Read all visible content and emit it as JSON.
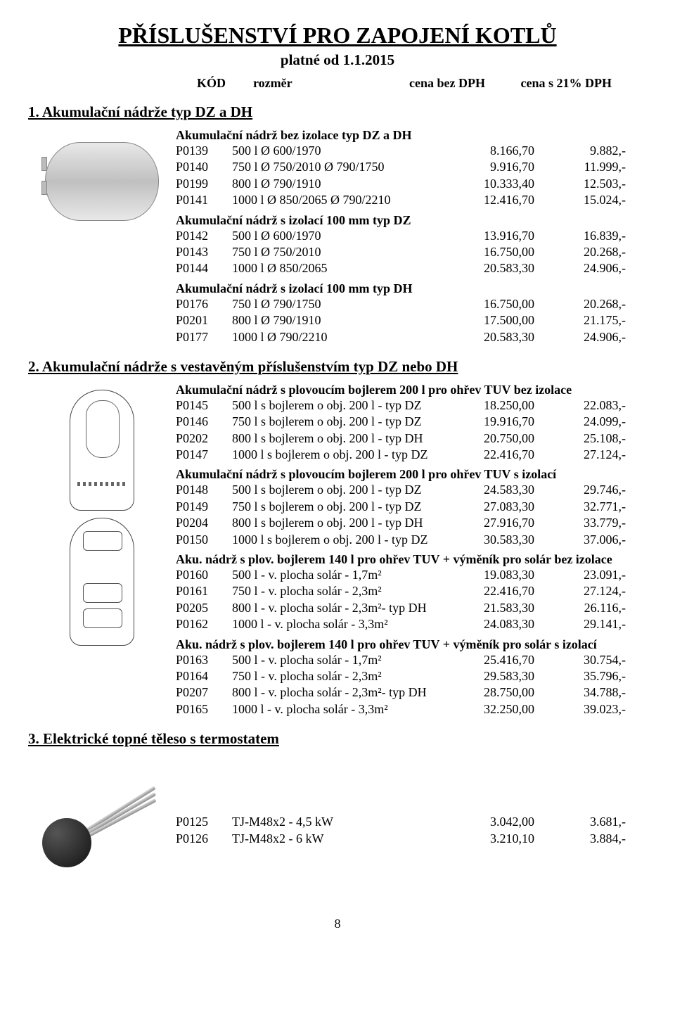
{
  "title": "PŘÍSLUŠENSTVÍ PRO ZAPOJENÍ KOTLŮ",
  "subtitle": "platné od 1.1.2015",
  "columns": {
    "c1": "KÓD",
    "c2": "rozměr",
    "c3": "cena bez DPH",
    "c4": "cena s 21% DPH"
  },
  "section1": {
    "title": "1. Akumulační nádrže typ DZ a DH",
    "groups": [
      {
        "title": "Akumulační nádrž bez izolace typ DZ a DH",
        "rows": [
          {
            "code": "P0139",
            "desc": "500 l   Ø 600/1970",
            "p1": "8.166,70",
            "p2": "9.882,-"
          },
          {
            "code": "P0140",
            "desc": "750 l   Ø 750/2010 Ø 790/1750",
            "p1": "9.916,70",
            "p2": "11.999,-"
          },
          {
            "code": "P0199",
            "desc": "800 l   Ø 790/1910",
            "p1": "10.333,40",
            "p2": "12.503,-"
          },
          {
            "code": "P0141",
            "desc": "1000 l Ø 850/2065 Ø 790/2210",
            "p1": "12.416,70",
            "p2": "15.024,-"
          }
        ]
      },
      {
        "title": "Akumulační nádrž s izolací 100 mm typ DZ",
        "rows": [
          {
            "code": "P0142",
            "desc": "500 l   Ø 600/1970",
            "p1": "13.916,70",
            "p2": "16.839,-"
          },
          {
            "code": "P0143",
            "desc": "750 l   Ø 750/2010",
            "p1": "16.750,00",
            "p2": "20.268,-"
          },
          {
            "code": "P0144",
            "desc": "1000 l Ø 850/2065",
            "p1": "20.583,30",
            "p2": "24.906,-"
          }
        ]
      },
      {
        "title": "Akumulační nádrž s izolací 100 mm  typ DH",
        "rows": [
          {
            "code": "P0176",
            "desc": "750 l   Ø 790/1750",
            "p1": "16.750,00",
            "p2": "20.268,-"
          },
          {
            "code": "P0201",
            "desc": "800 l   Ø 790/1910",
            "p1": "17.500,00",
            "p2": "21.175,-"
          },
          {
            "code": "P0177",
            "desc": "1000 l Ø 790/2210",
            "p1": "20.583,30",
            "p2": "24.906,-"
          }
        ]
      }
    ]
  },
  "section2": {
    "title": "2. Akumulační nádrže s vestavěným příslušenstvím typ DZ nebo DH",
    "groups": [
      {
        "title": "Akumulační nádrž s plovoucím bojlerem 200 l pro ohřev TUV bez izolace",
        "rows": [
          {
            "code": "P0145",
            "desc": "500 l s bojlerem o obj. 200 l - typ DZ",
            "p1": "18.250,00",
            "p2": "22.083,-"
          },
          {
            "code": "P0146",
            "desc": "750 l s bojlerem o obj. 200 l - typ DZ",
            "p1": "19.916,70",
            "p2": "24.099,-"
          },
          {
            "code": "P0202",
            "desc": "800 l s bojlerem o obj. 200 l - typ DH",
            "p1": "20.750,00",
            "p2": "25.108,-"
          },
          {
            "code": "P0147",
            "desc": "1000 l s bojlerem o obj. 200 l - typ DZ",
            "p1": "22.416,70",
            "p2": "27.124,-"
          }
        ]
      },
      {
        "title": "Akumulační nádrž s plovoucím bojlerem 200 l pro ohřev TUV s izolací",
        "rows": [
          {
            "code": "P0148",
            "desc": "500 l s bojlerem o obj. 200 l - typ DZ",
            "p1": "24.583,30",
            "p2": "29.746,-"
          },
          {
            "code": "P0149",
            "desc": "750 l s bojlerem o obj. 200 l - typ DZ",
            "p1": "27.083,30",
            "p2": "32.771,-"
          },
          {
            "code": "P0204",
            "desc": "800 l s bojlerem o obj. 200 l - typ DH",
            "p1": "27.916,70",
            "p2": "33.779,-"
          },
          {
            "code": "P0150",
            "desc": "1000 l s bojlerem o obj. 200 l - typ DZ",
            "p1": "30.583,30",
            "p2": "37.006,-"
          }
        ]
      },
      {
        "title": "Aku. nádrž s plov. bojlerem 140 l pro ohřev TUV + výměník pro solár bez izolace",
        "rows": [
          {
            "code": "P0160",
            "desc": "500 l - v. plocha solár - 1,7m²",
            "p1": "19.083,30",
            "p2": "23.091,-"
          },
          {
            "code": "P0161",
            "desc": "750 l - v. plocha solár - 2,3m²",
            "p1": "22.416,70",
            "p2": "27.124,-"
          },
          {
            "code": "P0205",
            "desc": "800 l - v. plocha solár - 2,3m²- typ DH",
            "p1": "21.583,30",
            "p2": "26.116,-"
          },
          {
            "code": "P0162",
            "desc": "1000 l - v. plocha solár - 3,3m²",
            "p1": "24.083,30",
            "p2": "29.141,-"
          }
        ]
      },
      {
        "title": "Aku. nádrž s plov. bojlerem 140 l pro ohřev TUV + výměník pro solár s izolací",
        "rows": [
          {
            "code": "P0163",
            "desc": "500 l - v. plocha solár - 1,7m²",
            "p1": "25.416,70",
            "p2": "30.754,-"
          },
          {
            "code": "P0164",
            "desc": "750 l - v. plocha solár - 2,3m²",
            "p1": "29.583,30",
            "p2": "35.796,-"
          },
          {
            "code": "P0207",
            "desc": "800 l - v. plocha solár - 2,3m²- typ DH",
            "p1": "28.750,00",
            "p2": "34.788,-"
          },
          {
            "code": "P0165",
            "desc": "1000 l - v. plocha solár - 3,3m²",
            "p1": "32.250,00",
            "p2": "39.023,-"
          }
        ]
      }
    ]
  },
  "section3": {
    "title": "3. Elektrické topné těleso s termostatem",
    "rows": [
      {
        "code": "P0125",
        "desc": "TJ-M48x2 - 4,5 kW",
        "p1": "3.042,00",
        "p2": "3.681,-"
      },
      {
        "code": "P0126",
        "desc": "TJ-M48x2 - 6 kW",
        "p1": "3.210,10",
        "p2": "3.884,-"
      }
    ]
  },
  "page_number": "8"
}
